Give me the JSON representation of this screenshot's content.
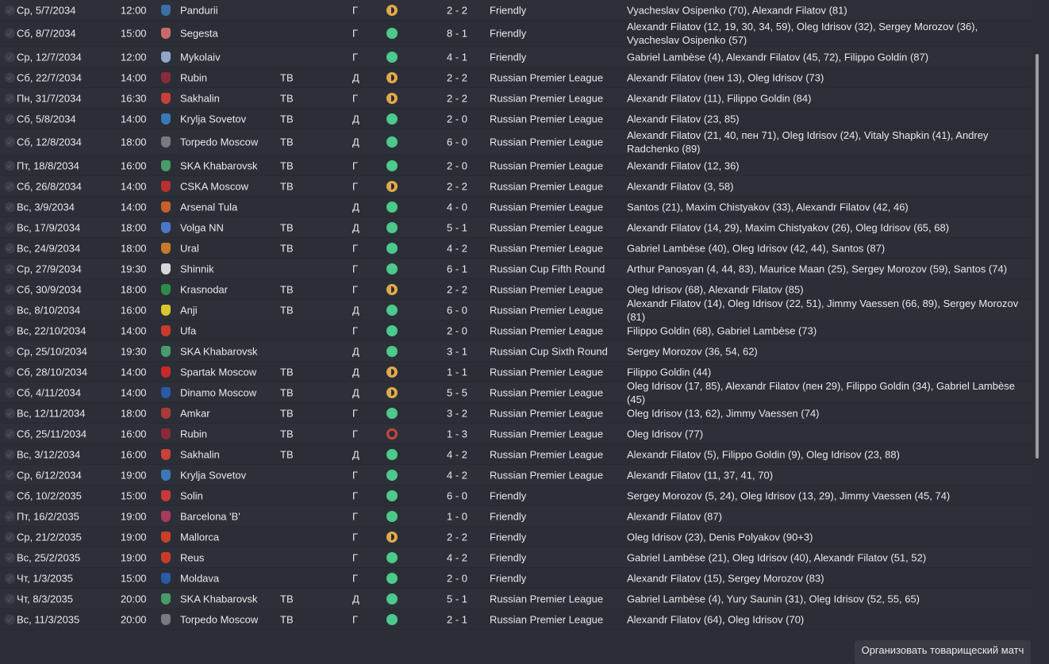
{
  "colors": {
    "win": "#4cc98b",
    "draw": "#e2a94b",
    "loss": "#c8463f"
  },
  "fixtures": [
    {
      "date": "Ср, 5/7/2034",
      "time": "12:00",
      "opponent": "Pandurii",
      "tv": "",
      "venue": "Г",
      "result": "draw",
      "score": "2 - 2",
      "competition": "Friendly",
      "scorers": "Vyacheslav Osipenko (70), Alexandr Filatov (81)",
      "crest": "#3c6ea8"
    },
    {
      "date": "Сб, 8/7/2034",
      "time": "15:00",
      "opponent": "Segesta",
      "tv": "",
      "venue": "Г",
      "result": "win",
      "score": "8 - 1",
      "competition": "Friendly",
      "scorers": "Alexandr Filatov (12, 19, 30, 34, 59), Oleg Idrisov (32), Sergey Morozov (36), Vyacheslav Osipenko (57)",
      "crest": "#c96a6a",
      "tall": true
    },
    {
      "date": "Ср, 12/7/2034",
      "time": "12:00",
      "opponent": "Mykolaiv",
      "tv": "",
      "venue": "Г",
      "result": "win",
      "score": "4 - 1",
      "competition": "Friendly",
      "scorers": "Gabriel Lambèse (4), Alexandr Filatov (45, 72), Filippo Goldin (87)",
      "crest": "#8fa8c8"
    },
    {
      "date": "Сб, 22/7/2034",
      "time": "14:00",
      "opponent": "Rubin",
      "tv": "ТВ",
      "venue": "Д",
      "result": "draw",
      "score": "2 - 2",
      "competition": "Russian Premier League",
      "scorers": "Alexandr Filatov (пен 13), Oleg Idrisov (73)",
      "crest": "#8a2a3a"
    },
    {
      "date": "Пн, 31/7/2034",
      "time": "16:30",
      "opponent": "Sakhalin",
      "tv": "ТВ",
      "venue": "Г",
      "result": "draw",
      "score": "2 - 2",
      "competition": "Russian Premier League",
      "scorers": "Alexandr Filatov (11), Filippo Goldin (84)",
      "crest": "#c8403a"
    },
    {
      "date": "Сб, 5/8/2034",
      "time": "14:00",
      "opponent": "Krylja Sovetov",
      "tv": "ТВ",
      "venue": "Д",
      "result": "win",
      "score": "2 - 0",
      "competition": "Russian Premier League",
      "scorers": "Alexandr Filatov (23, 85)",
      "crest": "#3a78b8"
    },
    {
      "date": "Сб, 12/8/2034",
      "time": "18:00",
      "opponent": "Torpedo Moscow",
      "tv": "ТВ",
      "venue": "Д",
      "result": "win",
      "score": "6 - 0",
      "competition": "Russian Premier League",
      "scorers": "Alexandr Filatov (21, 40, пен 71), Oleg Idrisov (24), Vitaly Shapkin (41), Andrey Radchenko (89)",
      "crest": "#777a80",
      "tall": true
    },
    {
      "date": "Пт, 18/8/2034",
      "time": "16:00",
      "opponent": "SKA Khabarovsk",
      "tv": "ТВ",
      "venue": "Г",
      "result": "win",
      "score": "2 - 0",
      "competition": "Russian Premier League",
      "scorers": "Alexandr Filatov (12, 36)",
      "crest": "#4a9a6a"
    },
    {
      "date": "Сб, 26/8/2034",
      "time": "14:00",
      "opponent": "CSKA Moscow",
      "tv": "ТВ",
      "venue": "Г",
      "result": "draw",
      "score": "2 - 2",
      "competition": "Russian Premier League",
      "scorers": "Alexandr Filatov (3, 58)",
      "crest": "#b83030"
    },
    {
      "date": "Вс, 3/9/2034",
      "time": "14:00",
      "opponent": "Arsenal Tula",
      "tv": "",
      "venue": "Д",
      "result": "win",
      "score": "4 - 0",
      "competition": "Russian Premier League",
      "scorers": "Santos (21), Maxim Chistyakov (33), Alexandr Filatov (42, 46)",
      "crest": "#c8602a"
    },
    {
      "date": "Вс, 17/9/2034",
      "time": "18:00",
      "opponent": "Volga NN",
      "tv": "ТВ",
      "venue": "Д",
      "result": "win",
      "score": "5 - 1",
      "competition": "Russian Premier League",
      "scorers": "Alexandr Filatov (14, 29), Maxim Chistyakov (26), Oleg Idrisov (65, 68)",
      "crest": "#4a78c8"
    },
    {
      "date": "Вс, 24/9/2034",
      "time": "18:00",
      "opponent": "Ural",
      "tv": "ТВ",
      "venue": "Г",
      "result": "win",
      "score": "4 - 2",
      "competition": "Russian Premier League",
      "scorers": "Gabriel Lambèse (40), Oleg Idrisov (42, 44), Santos (87)",
      "crest": "#c87a2a"
    },
    {
      "date": "Ср, 27/9/2034",
      "time": "19:30",
      "opponent": "Shinnik",
      "tv": "",
      "venue": "Г",
      "result": "win",
      "score": "6 - 1",
      "competition": "Russian Cup Fifth Round",
      "scorers": "Arthur Panosyan (4, 44, 83), Maurice Maan (25), Sergey Morozov (59), Santos (74)",
      "crest": "#d8d8d8"
    },
    {
      "date": "Сб, 30/9/2034",
      "time": "18:00",
      "opponent": "Krasnodar",
      "tv": "ТВ",
      "venue": "Г",
      "result": "draw",
      "score": "2 - 2",
      "competition": "Russian Premier League",
      "scorers": "Oleg Idrisov (68), Alexandr Filatov (85)",
      "crest": "#2e8a4a"
    },
    {
      "date": "Вс, 8/10/2034",
      "time": "16:00",
      "opponent": "Anji",
      "tv": "ТВ",
      "venue": "Д",
      "result": "win",
      "score": "6 - 0",
      "competition": "Russian Premier League",
      "scorers": "Alexandr Filatov (14), Oleg Idrisov (22, 51), Jimmy Vaessen (66, 89), Sergey Morozov (81)",
      "crest": "#d8c82a"
    },
    {
      "date": "Вс, 22/10/2034",
      "time": "14:00",
      "opponent": "Ufa",
      "tv": "",
      "venue": "Г",
      "result": "win",
      "score": "2 - 0",
      "competition": "Russian Premier League",
      "scorers": "Filippo Goldin (68), Gabriel Lambèse (73)",
      "crest": "#c83a2a"
    },
    {
      "date": "Ср, 25/10/2034",
      "time": "19:30",
      "opponent": "SKA Khabarovsk",
      "tv": "",
      "venue": "Д",
      "result": "win",
      "score": "3 - 1",
      "competition": "Russian Cup Sixth Round",
      "scorers": "Sergey Morozov (36, 54, 62)",
      "crest": "#4a9a6a"
    },
    {
      "date": "Сб, 28/10/2034",
      "time": "14:00",
      "opponent": "Spartak Moscow",
      "tv": "ТВ",
      "venue": "Д",
      "result": "draw",
      "score": "1 - 1",
      "competition": "Russian Premier League",
      "scorers": "Filippo Goldin (44)",
      "crest": "#c82a2a"
    },
    {
      "date": "Сб, 4/11/2034",
      "time": "14:00",
      "opponent": "Dinamo Moscow",
      "tv": "ТВ",
      "venue": "Д",
      "result": "draw",
      "score": "5 - 5",
      "competition": "Russian Premier League",
      "scorers": "Oleg Idrisov (17, 85), Alexandr Filatov (пен 29), Filippo Goldin (34), Gabriel Lambèse (45)",
      "crest": "#2a5aa8"
    },
    {
      "date": "Вс, 12/11/2034",
      "time": "18:00",
      "opponent": "Amkar",
      "tv": "ТВ",
      "venue": "Г",
      "result": "win",
      "score": "3 - 2",
      "competition": "Russian Premier League",
      "scorers": "Oleg Idrisov (13, 62), Jimmy Vaessen (74)",
      "crest": "#a83a3a"
    },
    {
      "date": "Сб, 25/11/2034",
      "time": "16:00",
      "opponent": "Rubin",
      "tv": "ТВ",
      "venue": "Г",
      "result": "loss",
      "score": "1 - 3",
      "competition": "Russian Premier League",
      "scorers": "Oleg Idrisov (77)",
      "crest": "#8a2a3a"
    },
    {
      "date": "Вс, 3/12/2034",
      "time": "16:00",
      "opponent": "Sakhalin",
      "tv": "ТВ",
      "venue": "Д",
      "result": "win",
      "score": "4 - 2",
      "competition": "Russian Premier League",
      "scorers": "Alexandr Filatov (5), Filippo Goldin (9), Oleg Idrisov (23, 88)",
      "crest": "#c8403a"
    },
    {
      "date": "Ср, 6/12/2034",
      "time": "19:00",
      "opponent": "Krylja Sovetov",
      "tv": "",
      "venue": "Г",
      "result": "win",
      "score": "4 - 2",
      "competition": "Russian Premier League",
      "scorers": "Alexandr Filatov (11, 37, 41, 70)",
      "crest": "#3a78b8"
    },
    {
      "date": "Сб, 10/2/2035",
      "time": "15:00",
      "opponent": "Solin",
      "tv": "",
      "venue": "Г",
      "result": "win",
      "score": "6 - 0",
      "competition": "Friendly",
      "scorers": "Sergey Morozov (5, 24), Oleg Idrisov (13, 29), Jimmy Vaessen (45, 74)",
      "crest": "#c83a3a"
    },
    {
      "date": "Пт, 16/2/2035",
      "time": "19:00",
      "opponent": "Barcelona 'B'",
      "tv": "",
      "venue": "Г",
      "result": "win",
      "score": "1 - 0",
      "competition": "Friendly",
      "scorers": "Alexandr Filatov (87)",
      "crest": "#a83a5a"
    },
    {
      "date": "Ср, 21/2/2035",
      "time": "19:00",
      "opponent": "Mallorca",
      "tv": "",
      "venue": "Г",
      "result": "draw",
      "score": "2 - 2",
      "competition": "Friendly",
      "scorers": "Oleg Idrisov (23), Denis Polyakov (90+3)",
      "crest": "#c8402a"
    },
    {
      "date": "Вс, 25/2/2035",
      "time": "19:00",
      "opponent": "Reus",
      "tv": "",
      "venue": "Г",
      "result": "win",
      "score": "4 - 2",
      "competition": "Friendly",
      "scorers": "Gabriel Lambèse (21), Oleg Idrisov (40), Alexandr Filatov (51, 52)",
      "crest": "#c83a2a"
    },
    {
      "date": "Чт, 1/3/2035",
      "time": "15:00",
      "opponent": "Moldava",
      "tv": "",
      "venue": "Г",
      "result": "win",
      "score": "2 - 0",
      "competition": "Friendly",
      "scorers": "Alexandr Filatov (15), Sergey Morozov (83)",
      "crest": "#2a5aa8"
    },
    {
      "date": "Чт, 8/3/2035",
      "time": "20:00",
      "opponent": "SKA Khabarovsk",
      "tv": "ТВ",
      "venue": "Д",
      "result": "win",
      "score": "5 - 1",
      "competition": "Russian Premier League",
      "scorers": "Gabriel Lambèse (4), Yury Saunin (31), Oleg Idrisov (52, 55, 65)",
      "crest": "#4a9a6a"
    },
    {
      "date": "Вс, 11/3/2035",
      "time": "20:00",
      "opponent": "Torpedo Moscow",
      "tv": "ТВ",
      "venue": "Г",
      "result": "win",
      "score": "2 - 1",
      "competition": "Russian Premier League",
      "scorers": "Alexandr Filatov (64), Oleg Idrisov (70)",
      "crest": "#777a80"
    }
  ],
  "footer": {
    "arrange_friendly_label": "Организовать товарищеский матч"
  }
}
